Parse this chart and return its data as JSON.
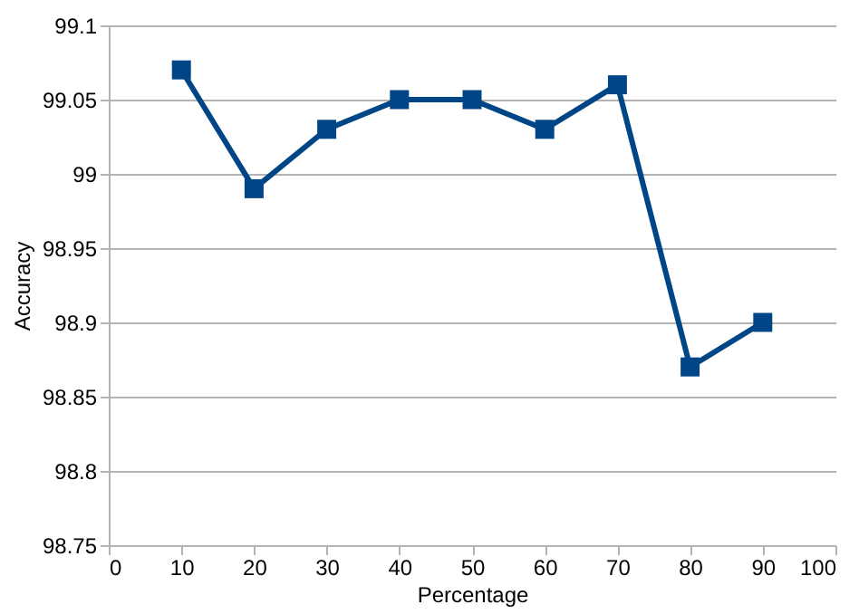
{
  "chart_data": {
    "type": "line",
    "xlabel": "Percentage",
    "ylabel": "Accuracy",
    "x": [
      10,
      20,
      30,
      40,
      50,
      60,
      70,
      80,
      90
    ],
    "series": [
      {
        "color": "#004586",
        "values": [
          99.07,
          98.99,
          99.03,
          99.05,
          99.05,
          99.03,
          99.06,
          98.87,
          98.9
        ]
      }
    ],
    "xlim": [
      0,
      100
    ],
    "xticks": [
      0,
      10,
      20,
      30,
      40,
      50,
      60,
      70,
      80,
      90,
      100
    ],
    "ylim": [
      98.75,
      99.1
    ],
    "yticks": [
      98.75,
      98.8,
      98.85,
      98.9,
      98.95,
      99,
      99.05,
      99.1
    ],
    "grid": "y",
    "legend": false,
    "marker": "square",
    "line_style": "solid"
  }
}
